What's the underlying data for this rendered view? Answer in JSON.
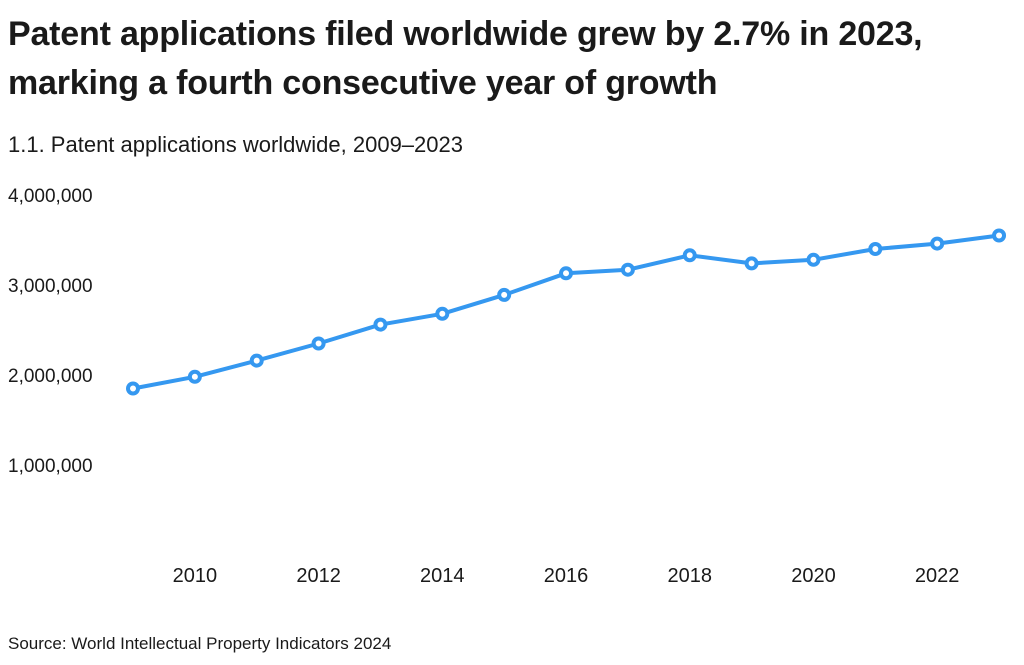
{
  "page": {
    "title": "Patent applications filed worldwide grew by 2.7% in 2023, marking a fourth consecutive year of growth",
    "subtitle": "1.1. Patent applications worldwide, 2009–2023",
    "source": "Source: World Intellectual Property Indicators 2024"
  },
  "colors": {
    "line": "#3598f0",
    "marker_fill": "#ffffff",
    "text": "#1a1a1a"
  },
  "chart_data": {
    "type": "line",
    "title": "1.1. Patent applications worldwide, 2009–2023",
    "x": [
      2009,
      2010,
      2011,
      2012,
      2013,
      2014,
      2015,
      2016,
      2017,
      2018,
      2019,
      2020,
      2021,
      2022,
      2023
    ],
    "series": [
      {
        "name": "Patent applications worldwide",
        "values": [
          1850000,
          1980000,
          2160000,
          2350000,
          2560000,
          2680000,
          2890000,
          3130000,
          3170000,
          3330000,
          3240000,
          3280000,
          3400000,
          3460000,
          3550000
        ]
      }
    ],
    "x_ticks": [
      2010,
      2012,
      2014,
      2016,
      2018,
      2020,
      2022
    ],
    "x_tick_labels": [
      "2010",
      "2012",
      "2014",
      "2016",
      "2018",
      "2020",
      "2022"
    ],
    "y_ticks": [
      1000000,
      2000000,
      3000000,
      4000000
    ],
    "y_tick_labels": [
      "1,000,000",
      "2,000,000",
      "3,000,000",
      "4,000,000"
    ],
    "ylim": [
      0,
      4300000
    ],
    "xlabel": "",
    "ylabel": "",
    "grid": false,
    "legend": "none",
    "marker": "open-circle"
  }
}
